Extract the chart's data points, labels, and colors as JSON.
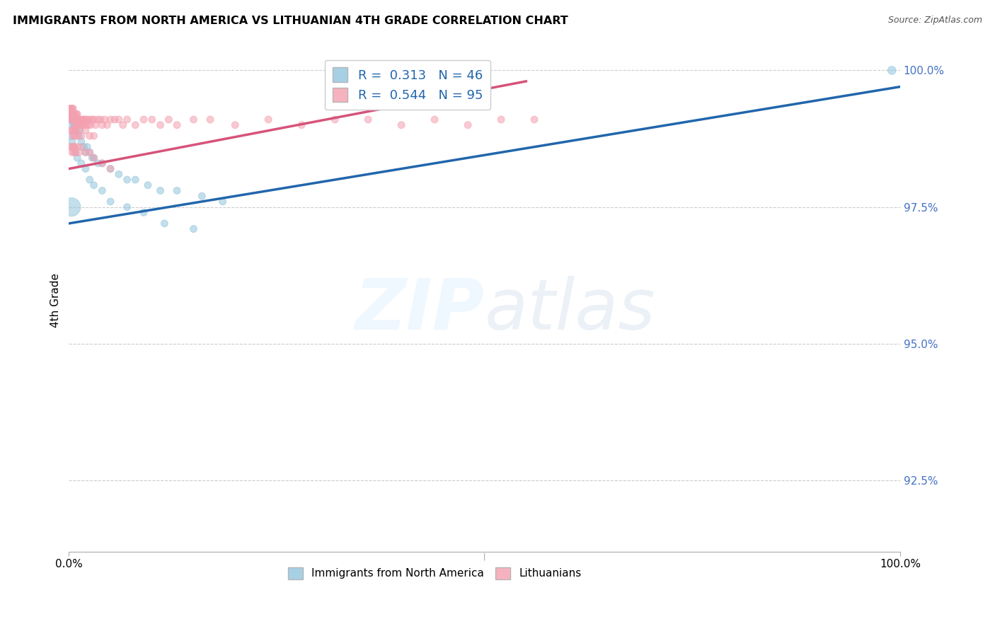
{
  "title": "IMMIGRANTS FROM NORTH AMERICA VS LITHUANIAN 4TH GRADE CORRELATION CHART",
  "source": "Source: ZipAtlas.com",
  "ylabel": "4th Grade",
  "legend_blue_label": "Immigrants from North America",
  "legend_pink_label": "Lithuanians",
  "R_blue": 0.313,
  "N_blue": 46,
  "R_pink": 0.544,
  "N_pink": 95,
  "blue_color": "#92c5de",
  "pink_color": "#f4a0b0",
  "blue_line_color": "#2166ac",
  "pink_line_color": "#d6537a",
  "blue_line": {
    "x0": 0.0,
    "y0": 0.972,
    "x1": 1.0,
    "y1": 0.997
  },
  "pink_line": {
    "x0": 0.0,
    "y0": 0.982,
    "x1": 0.55,
    "y1": 0.998
  },
  "blue_scatter_x": [
    0.002,
    0.003,
    0.004,
    0.005,
    0.006,
    0.007,
    0.008,
    0.009,
    0.01,
    0.012,
    0.013,
    0.015,
    0.018,
    0.02,
    0.022,
    0.025,
    0.028,
    0.03,
    0.035,
    0.04,
    0.05,
    0.06,
    0.07,
    0.08,
    0.095,
    0.11,
    0.13,
    0.16,
    0.185,
    0.002,
    0.004,
    0.006,
    0.008,
    0.01,
    0.015,
    0.02,
    0.025,
    0.03,
    0.04,
    0.05,
    0.07,
    0.09,
    0.115,
    0.15,
    0.99,
    0.003
  ],
  "blue_scatter_y": [
    0.991,
    0.99,
    0.992,
    0.991,
    0.99,
    0.991,
    0.989,
    0.99,
    0.991,
    0.988,
    0.989,
    0.987,
    0.986,
    0.985,
    0.986,
    0.985,
    0.984,
    0.984,
    0.983,
    0.983,
    0.982,
    0.981,
    0.98,
    0.98,
    0.979,
    0.978,
    0.978,
    0.977,
    0.976,
    0.988,
    0.987,
    0.986,
    0.985,
    0.984,
    0.983,
    0.982,
    0.98,
    0.979,
    0.978,
    0.976,
    0.975,
    0.974,
    0.972,
    0.971,
    1.0,
    0.975
  ],
  "blue_scatter_s": [
    60,
    50,
    50,
    50,
    50,
    50,
    50,
    50,
    50,
    50,
    50,
    50,
    50,
    50,
    50,
    50,
    50,
    50,
    50,
    50,
    50,
    50,
    50,
    50,
    50,
    50,
    50,
    50,
    50,
    50,
    50,
    50,
    50,
    50,
    50,
    50,
    50,
    50,
    50,
    50,
    50,
    50,
    50,
    50,
    70,
    350
  ],
  "pink_scatter_x": [
    0.001,
    0.002,
    0.002,
    0.003,
    0.003,
    0.003,
    0.004,
    0.004,
    0.005,
    0.005,
    0.005,
    0.006,
    0.006,
    0.007,
    0.007,
    0.008,
    0.008,
    0.009,
    0.009,
    0.01,
    0.01,
    0.011,
    0.012,
    0.012,
    0.013,
    0.014,
    0.015,
    0.016,
    0.017,
    0.018,
    0.019,
    0.02,
    0.021,
    0.022,
    0.023,
    0.025,
    0.026,
    0.028,
    0.03,
    0.032,
    0.035,
    0.038,
    0.04,
    0.043,
    0.046,
    0.05,
    0.055,
    0.06,
    0.065,
    0.07,
    0.08,
    0.09,
    0.1,
    0.11,
    0.12,
    0.13,
    0.15,
    0.17,
    0.2,
    0.24,
    0.28,
    0.32,
    0.36,
    0.4,
    0.44,
    0.48,
    0.52,
    0.56,
    0.003,
    0.004,
    0.005,
    0.006,
    0.007,
    0.008,
    0.01,
    0.012,
    0.015,
    0.02,
    0.025,
    0.03,
    0.002,
    0.003,
    0.004,
    0.005,
    0.006,
    0.007,
    0.008,
    0.01,
    0.012,
    0.015,
    0.02,
    0.025,
    0.03,
    0.04,
    0.05
  ],
  "pink_scatter_y": [
    0.993,
    0.993,
    0.992,
    0.993,
    0.992,
    0.991,
    0.993,
    0.991,
    0.993,
    0.992,
    0.991,
    0.992,
    0.991,
    0.992,
    0.99,
    0.991,
    0.99,
    0.992,
    0.991,
    0.992,
    0.99,
    0.991,
    0.991,
    0.99,
    0.991,
    0.99,
    0.991,
    0.99,
    0.991,
    0.99,
    0.991,
    0.991,
    0.99,
    0.991,
    0.99,
    0.991,
    0.99,
    0.991,
    0.991,
    0.99,
    0.991,
    0.991,
    0.99,
    0.991,
    0.99,
    0.991,
    0.991,
    0.991,
    0.99,
    0.991,
    0.99,
    0.991,
    0.991,
    0.99,
    0.991,
    0.99,
    0.991,
    0.991,
    0.99,
    0.991,
    0.99,
    0.991,
    0.991,
    0.99,
    0.991,
    0.99,
    0.991,
    0.991,
    0.989,
    0.989,
    0.988,
    0.989,
    0.988,
    0.989,
    0.988,
    0.989,
    0.988,
    0.989,
    0.988,
    0.988,
    0.986,
    0.986,
    0.985,
    0.986,
    0.985,
    0.986,
    0.985,
    0.986,
    0.985,
    0.986,
    0.985,
    0.985,
    0.984,
    0.983,
    0.982
  ],
  "pink_scatter_s": [
    50,
    50,
    50,
    50,
    50,
    50,
    50,
    50,
    50,
    50,
    50,
    50,
    50,
    50,
    50,
    50,
    50,
    50,
    50,
    50,
    50,
    50,
    50,
    50,
    50,
    50,
    50,
    50,
    50,
    50,
    50,
    50,
    50,
    50,
    50,
    50,
    50,
    50,
    50,
    50,
    50,
    50,
    50,
    50,
    50,
    50,
    50,
    50,
    50,
    50,
    50,
    50,
    50,
    50,
    50,
    50,
    50,
    50,
    50,
    50,
    50,
    50,
    50,
    50,
    50,
    50,
    50,
    50,
    50,
    50,
    50,
    50,
    50,
    50,
    50,
    50,
    50,
    50,
    50,
    50,
    50,
    50,
    50,
    50,
    50,
    50,
    50,
    50,
    50,
    50,
    50,
    50,
    50,
    50,
    50
  ],
  "xlim": [
    0.0,
    1.0
  ],
  "ylim": [
    0.912,
    1.004
  ],
  "yticks": [
    0.925,
    0.95,
    0.975,
    1.0
  ],
  "ytick_labels": [
    "92.5%",
    "95.0%",
    "97.5%",
    "100.0%"
  ]
}
